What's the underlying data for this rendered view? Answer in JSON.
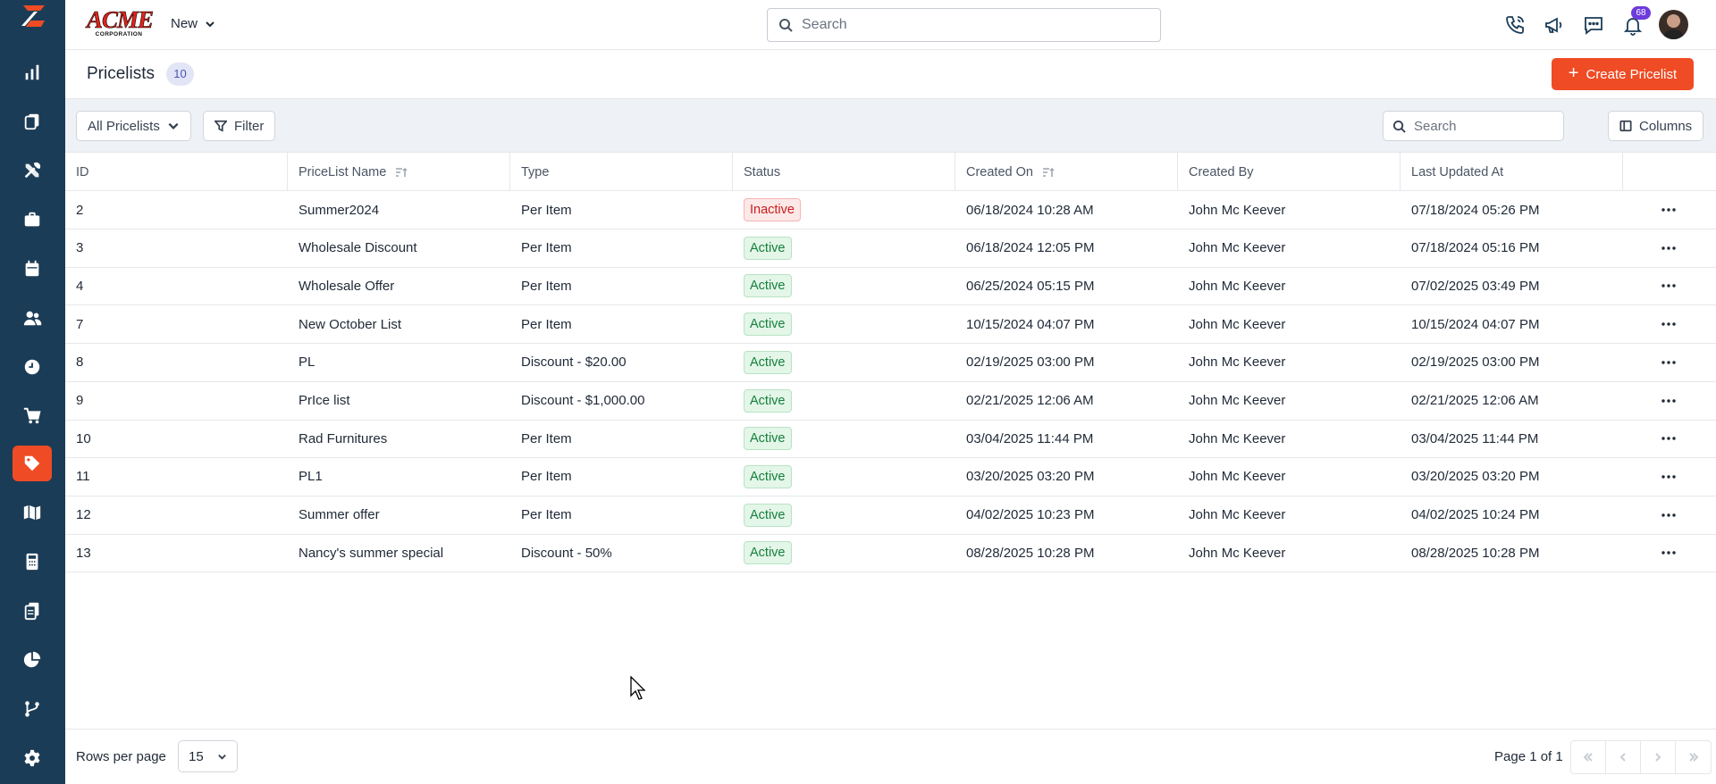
{
  "header": {
    "brand_name": "ACME",
    "brand_sub": "CORPORATION",
    "new_label": "New",
    "search_placeholder": "Search",
    "notifications_count": "68"
  },
  "page": {
    "title": "Pricelists",
    "count": "10",
    "create_button": "Create Pricelist"
  },
  "toolbar": {
    "view_select": "All Pricelists",
    "filter_label": "Filter",
    "search_placeholder": "Search",
    "columns_label": "Columns"
  },
  "table": {
    "columns": [
      "ID",
      "PriceList Name",
      "Type",
      "Status",
      "Created On",
      "Created By",
      "Last Updated At"
    ],
    "rows": [
      {
        "id": "2",
        "name": "Summer2024",
        "type": "Per Item",
        "status": "Inactive",
        "created_on": "06/18/2024 10:28 AM",
        "created_by": "John Mc Keever",
        "updated": "07/18/2024 05:26 PM"
      },
      {
        "id": "3",
        "name": "Wholesale Discount",
        "type": "Per Item",
        "status": "Active",
        "created_on": "06/18/2024 12:05 PM",
        "created_by": "John Mc Keever",
        "updated": "07/18/2024 05:16 PM"
      },
      {
        "id": "4",
        "name": "Wholesale Offer",
        "type": "Per Item",
        "status": "Active",
        "created_on": "06/25/2024 05:15 PM",
        "created_by": "John Mc Keever",
        "updated": "07/02/2025 03:49 PM"
      },
      {
        "id": "7",
        "name": "New October List",
        "type": "Per Item",
        "status": "Active",
        "created_on": "10/15/2024 04:07 PM",
        "created_by": "John Mc Keever",
        "updated": "10/15/2024 04:07 PM"
      },
      {
        "id": "8",
        "name": "PL",
        "type": "Discount - $20.00",
        "status": "Active",
        "created_on": "02/19/2025 03:00 PM",
        "created_by": "John Mc Keever",
        "updated": "02/19/2025 03:00 PM"
      },
      {
        "id": "9",
        "name": "PrIce list",
        "type": "Discount - $1,000.00",
        "status": "Active",
        "created_on": "02/21/2025 12:06 AM",
        "created_by": "John Mc Keever",
        "updated": "02/21/2025 12:06 AM"
      },
      {
        "id": "10",
        "name": "Rad Furnitures",
        "type": "Per Item",
        "status": "Active",
        "created_on": "03/04/2025 11:44 PM",
        "created_by": "John Mc Keever",
        "updated": "03/04/2025 11:44 PM"
      },
      {
        "id": "11",
        "name": "PL1",
        "type": "Per Item",
        "status": "Active",
        "created_on": "03/20/2025 03:20 PM",
        "created_by": "John Mc Keever",
        "updated": "03/20/2025 03:20 PM"
      },
      {
        "id": "12",
        "name": "Summer offer",
        "type": "Per Item",
        "status": "Active",
        "created_on": "04/02/2025 10:23 PM",
        "created_by": "John Mc Keever",
        "updated": "04/02/2025 10:24 PM"
      },
      {
        "id": "13",
        "name": "Nancy's summer special",
        "type": "Discount - 50%",
        "status": "Active",
        "created_on": "08/28/2025 10:28 PM",
        "created_by": "John Mc Keever",
        "updated": "08/28/2025 10:28 PM"
      }
    ]
  },
  "footer": {
    "rows_per_page_label": "Rows per page",
    "rows_per_page_value": "15",
    "page_info": "Page 1 of 1"
  },
  "sidebar": {
    "items": [
      "dashboard",
      "jobs",
      "tools",
      "briefcase",
      "calendar",
      "people",
      "time",
      "cart",
      "pricelists",
      "map",
      "calculator",
      "documents",
      "reports",
      "workflow",
      "settings"
    ],
    "active": "pricelists"
  },
  "colors": {
    "sidebar": "#1b3c57",
    "accent": "#ef4b24",
    "active_status": "#15803d",
    "inactive_status": "#c81e1e"
  }
}
